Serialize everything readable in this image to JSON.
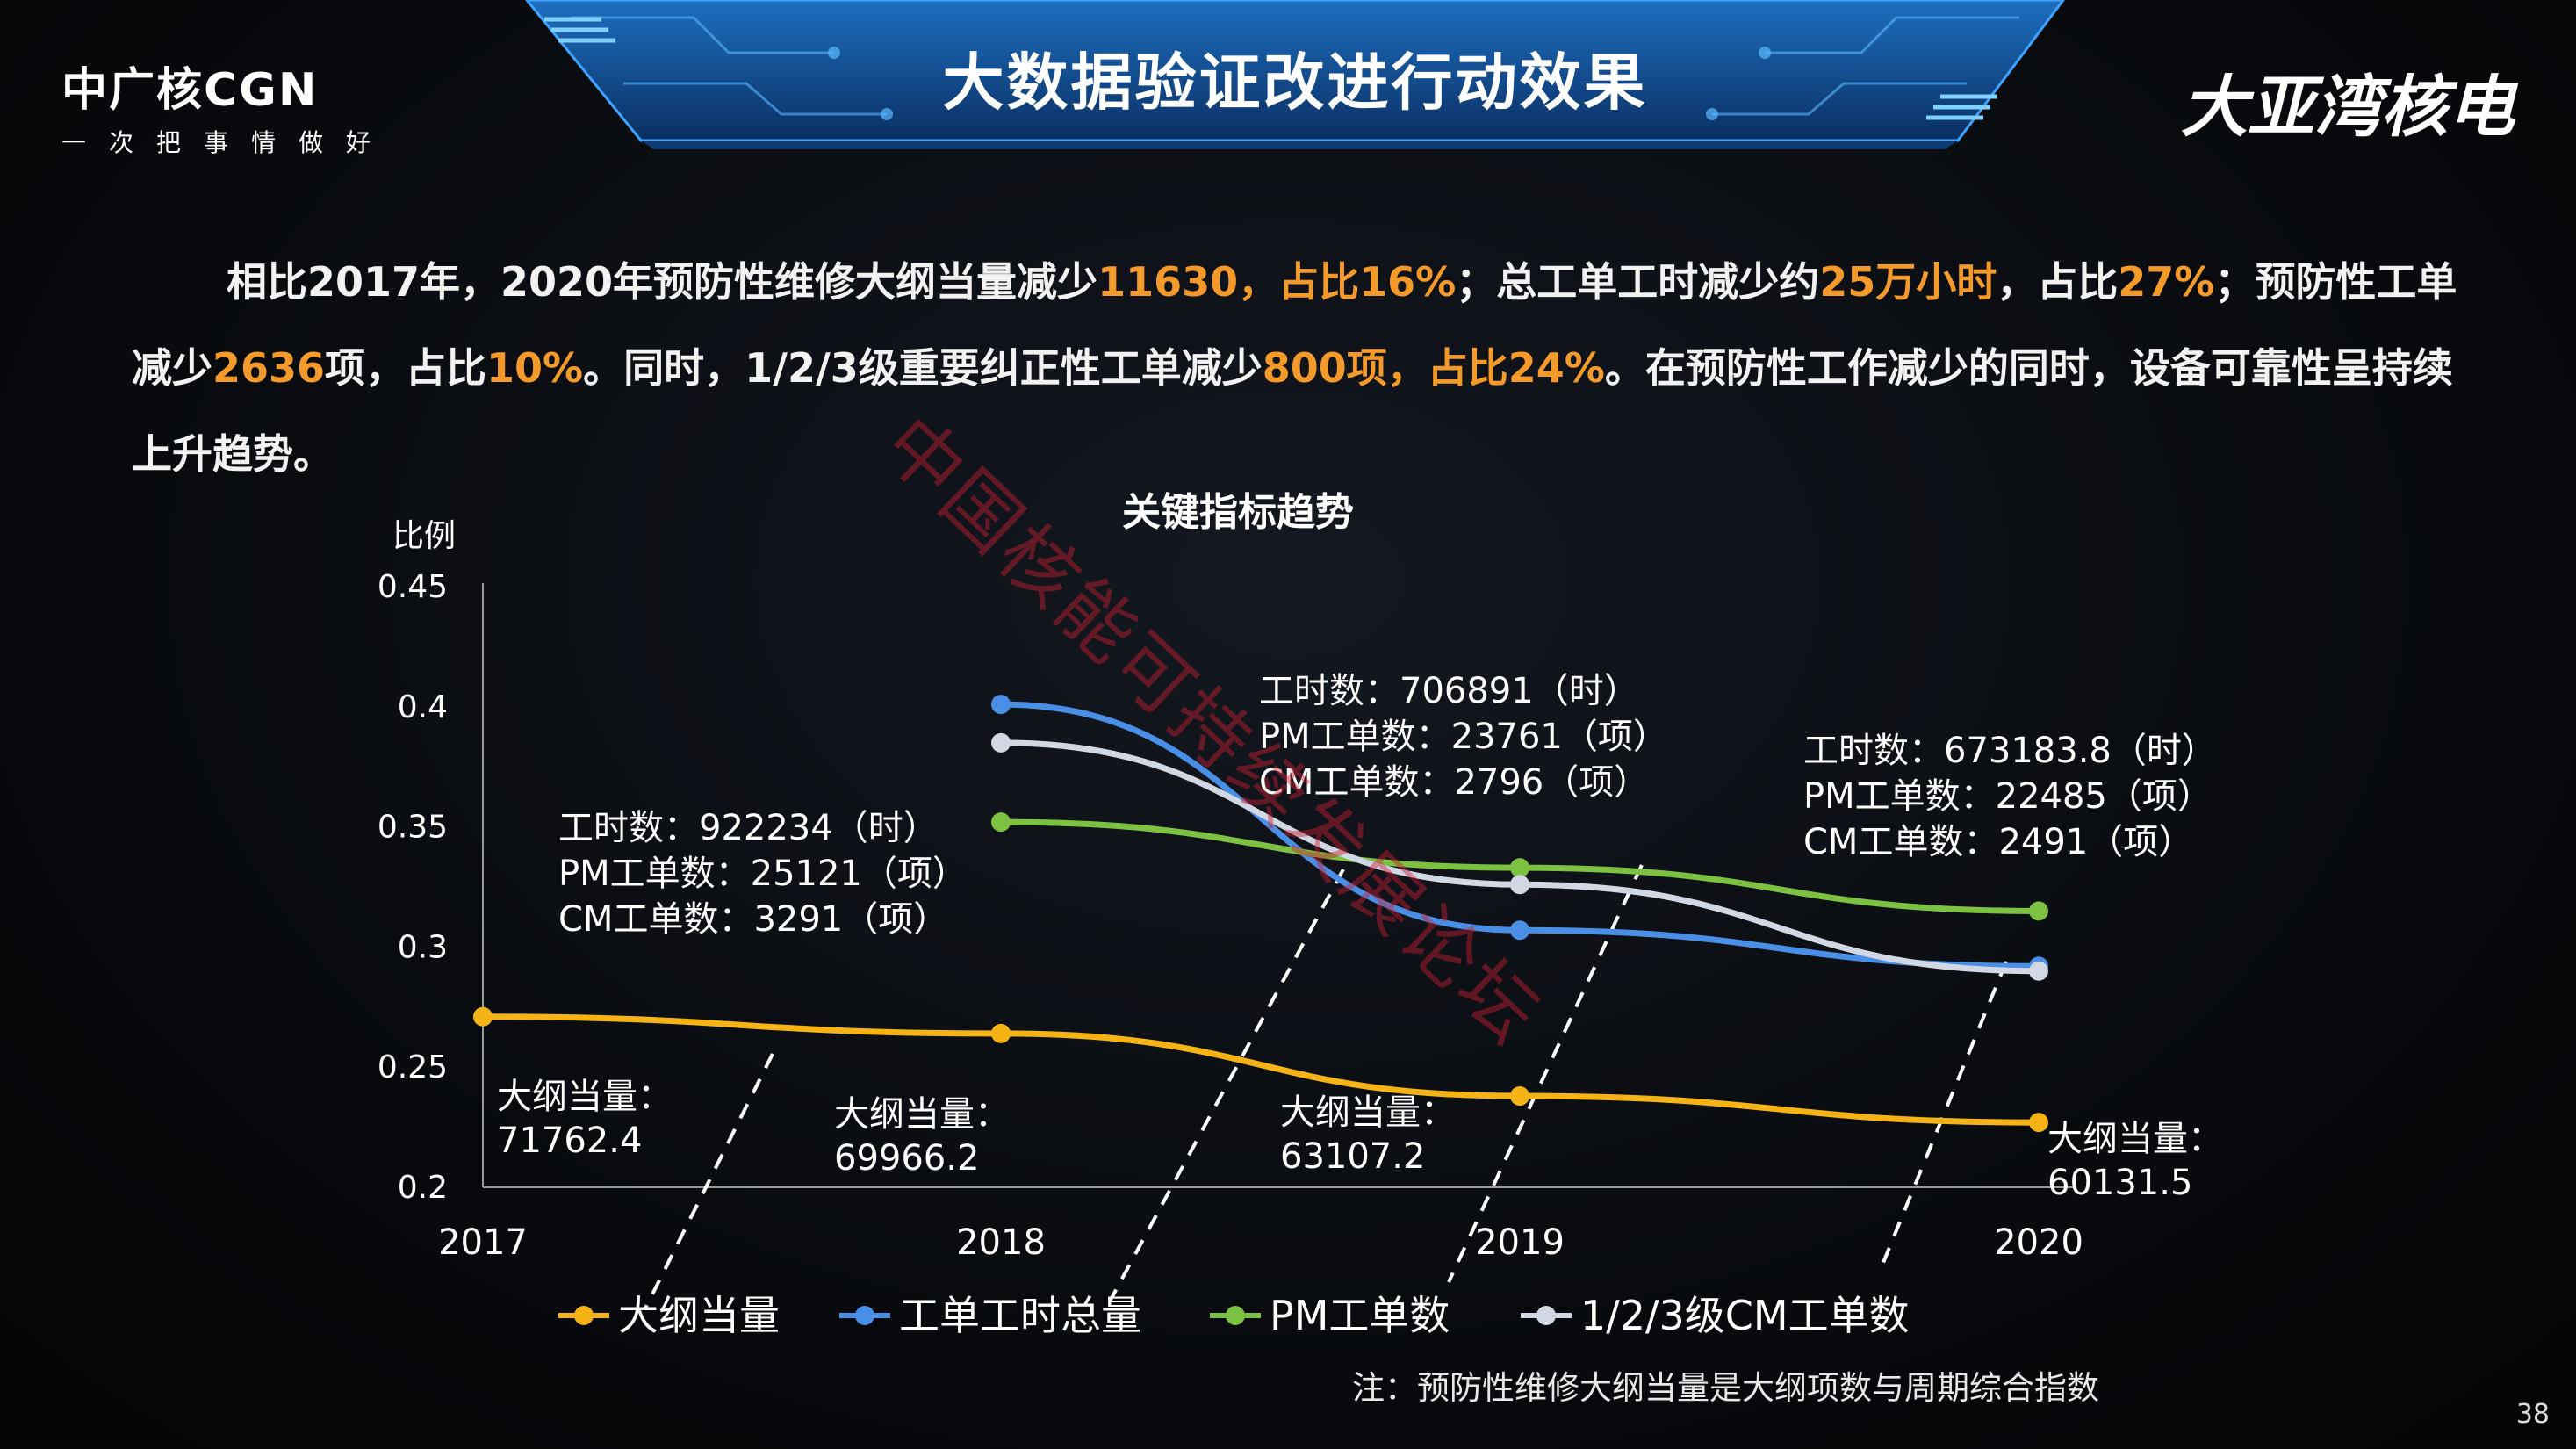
{
  "header": {
    "logo_main": "中广核CGN",
    "logo_slogan": "一次把事情做好",
    "brand_right": "大亚湾核电",
    "title": "大数据验证改进行动效果"
  },
  "summary": {
    "p1": "相比2017年，2020年预防性维修大纲当量减少",
    "h1": "11630，占比16%",
    "p2": "；总工单工时减少约",
    "h2": "25万小时",
    "p3": "，占比",
    "h3": "27%",
    "p4": "；预防性工单减少",
    "h4": "2636",
    "p5": "项，占比",
    "h5": "10%",
    "p6": "。同时，1/2/3级重要纠正性工单减少",
    "h6": "800项，占比24%",
    "p7": "。在预防性工作减少的同时，设备可靠性呈持续上升趋势。"
  },
  "chart_data": {
    "type": "line",
    "title": "关键指标趋势",
    "ylabel": "比例",
    "xlabel": "",
    "ylim": [
      0.2,
      0.45
    ],
    "yticks": [
      "0.45",
      "0.4",
      "0.35",
      "0.3",
      "0.25",
      "0.2"
    ],
    "categories": [
      "2017",
      "2018",
      "2019",
      "2020"
    ],
    "series": [
      {
        "name": "大纲当量",
        "color": "#f5b316",
        "values": [
          0.271,
          0.264,
          0.238,
          0.227
        ]
      },
      {
        "name": "工单工时总量",
        "color": "#4a8fe6",
        "values": [
          null,
          0.401,
          0.307,
          0.292
        ]
      },
      {
        "name": "PM工单数",
        "color": "#7cc142",
        "values": [
          null,
          0.352,
          0.333,
          0.315
        ]
      },
      {
        "name": "1/2/3级CM工单数",
        "color": "#d2d7e4",
        "values": [
          null,
          0.385,
          0.326,
          0.29
        ]
      }
    ],
    "point_labels": [
      {
        "l1": "大纲当量：",
        "l2": "71762.4"
      },
      {
        "l1": "大纲当量：",
        "l2": "69966.2"
      },
      {
        "l1": "大纲当量：",
        "l2": "63107.2"
      },
      {
        "l1": "大纲当量：",
        "l2": "60131.5"
      }
    ],
    "callouts": [
      {
        "lines": [
          "工时数：922234（时）",
          "PM工单数：25121（项）",
          "CM工单数：3291（项）"
        ]
      },
      {
        "lines": [
          "工时数：706891（时）",
          "PM工单数：23761（项）",
          "CM工单数：2796（项）"
        ]
      },
      {
        "lines": [
          "工时数：673183.8（时）",
          "PM工单数：22485（项）",
          "CM工单数：2491（项）"
        ]
      }
    ],
    "legend_position": "bottom",
    "grid": false
  },
  "watermark": "中国核能可持续发展论坛",
  "note": "注：预防性维修大纲当量是大纲项数与周期综合指数",
  "page_number": "38"
}
